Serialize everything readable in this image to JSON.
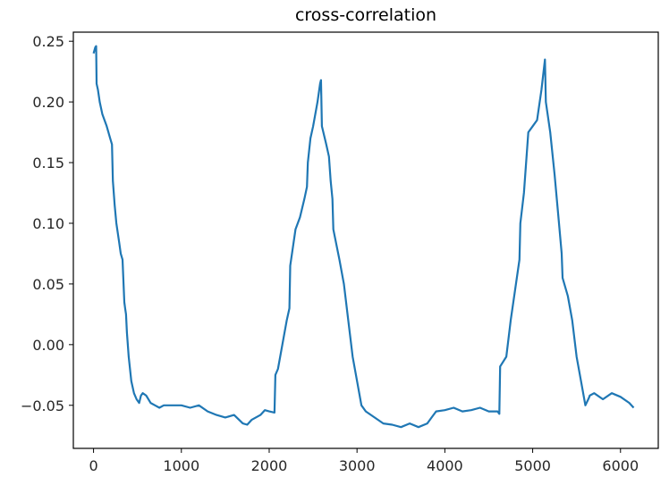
{
  "chart_data": {
    "type": "line",
    "title": "cross-correlation",
    "xlabel": "",
    "ylabel": "",
    "xlim": [
      -230,
      6430
    ],
    "ylim": [
      -0.0855,
      0.2575
    ],
    "x_ticks": [
      0,
      1000,
      2000,
      3000,
      4000,
      5000,
      6000
    ],
    "x_tick_labels": [
      "0",
      "1000",
      "2000",
      "3000",
      "4000",
      "5000",
      "6000"
    ],
    "y_ticks": [
      -0.05,
      0.0,
      0.05,
      0.1,
      0.15,
      0.2,
      0.25
    ],
    "y_tick_labels": [
      "−0.05",
      "0.00",
      "0.05",
      "0.10",
      "0.15",
      "0.20",
      "0.25"
    ],
    "grid": false,
    "line_color": "#1f77b4",
    "series": [
      {
        "x": [
          0,
          20,
          30,
          35,
          50,
          70,
          100,
          150,
          190,
          210,
          220,
          225,
          240,
          260,
          290,
          310,
          330,
          350,
          360,
          370,
          380,
          400,
          430,
          460,
          490,
          520,
          540,
          560,
          600,
          650,
          700,
          750,
          800,
          900,
          1000,
          1100,
          1200,
          1300,
          1400,
          1500,
          1600,
          1700,
          1750,
          1800,
          1900,
          1950,
          2000,
          2060,
          2070,
          2100,
          2150,
          2200,
          2230,
          2240,
          2300,
          2350,
          2400,
          2430,
          2440,
          2470,
          2500,
          2550,
          2580,
          2590,
          2600,
          2650,
          2680,
          2700,
          2720,
          2730,
          2800,
          2850,
          2900,
          2950,
          3000,
          3050,
          3100,
          3200,
          3300,
          3400,
          3500,
          3600,
          3700,
          3800,
          3850,
          3900,
          4000,
          4100,
          4200,
          4300,
          4400,
          4500,
          4600,
          4620,
          4630,
          4700,
          4750,
          4800,
          4850,
          4860,
          4900,
          4950,
          5000,
          5050,
          5100,
          5140,
          5150,
          5200,
          5250,
          5300,
          5330,
          5340,
          5400,
          5450,
          5500,
          5550,
          5600,
          5640,
          5650,
          5700,
          5800,
          5900,
          6000,
          6100,
          6150
        ],
        "y": [
          0.24,
          0.245,
          0.246,
          0.215,
          0.21,
          0.2,
          0.19,
          0.18,
          0.17,
          0.165,
          0.135,
          0.13,
          0.115,
          0.1,
          0.085,
          0.075,
          0.07,
          0.035,
          0.03,
          0.025,
          0.01,
          -0.01,
          -0.03,
          -0.04,
          -0.045,
          -0.048,
          -0.042,
          -0.04,
          -0.042,
          -0.048,
          -0.05,
          -0.052,
          -0.05,
          -0.05,
          -0.05,
          -0.052,
          -0.05,
          -0.055,
          -0.058,
          -0.06,
          -0.058,
          -0.065,
          -0.066,
          -0.062,
          -0.058,
          -0.054,
          -0.055,
          -0.056,
          -0.025,
          -0.02,
          0.0,
          0.02,
          0.03,
          0.065,
          0.095,
          0.105,
          0.12,
          0.13,
          0.15,
          0.17,
          0.18,
          0.2,
          0.215,
          0.218,
          0.18,
          0.165,
          0.155,
          0.135,
          0.12,
          0.095,
          0.07,
          0.05,
          0.02,
          -0.01,
          -0.03,
          -0.05,
          -0.055,
          -0.06,
          -0.065,
          -0.066,
          -0.068,
          -0.065,
          -0.068,
          -0.065,
          -0.06,
          -0.055,
          -0.054,
          -0.052,
          -0.055,
          -0.054,
          -0.052,
          -0.055,
          -0.055,
          -0.057,
          -0.018,
          -0.01,
          0.02,
          0.045,
          0.07,
          0.1,
          0.125,
          0.175,
          0.18,
          0.185,
          0.21,
          0.235,
          0.2,
          0.175,
          0.14,
          0.1,
          0.075,
          0.055,
          0.04,
          0.02,
          -0.01,
          -0.03,
          -0.05,
          -0.044,
          -0.042,
          -0.04,
          -0.045,
          -0.04,
          -0.043,
          -0.048,
          -0.052
        ]
      }
    ]
  }
}
